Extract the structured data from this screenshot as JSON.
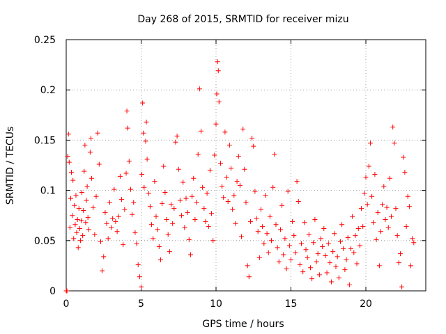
{
  "chart_data": {
    "type": "scatter",
    "title": "Day 268 of 2015, SRMTID for receiver mizu",
    "xlabel": "GPS time / hours",
    "ylabel": "SRMTID / TECUs",
    "xlim": [
      0,
      24
    ],
    "ylim": [
      0,
      0.25
    ],
    "xticks": [
      0,
      5,
      10,
      15,
      20
    ],
    "xtick_labels": [
      "0",
      "5",
      "10",
      "15",
      "20"
    ],
    "yticks": [
      0,
      0.05,
      0.1,
      0.15,
      0.2,
      0.25
    ],
    "ytick_labels": [
      "0",
      "0.05",
      "0.1",
      "0.15",
      "0.2",
      "0.25"
    ],
    "grid": true,
    "marker": "plus",
    "color": "#ff0000",
    "series": [
      {
        "name": "SRMTID",
        "points": [
          [
            0.0,
            0.0
          ],
          [
            0.05,
            0.0
          ],
          [
            0.1,
            0.134
          ],
          [
            0.15,
            0.156
          ],
          [
            0.2,
            0.128
          ],
          [
            0.25,
            0.063
          ],
          [
            0.3,
            0.092
          ],
          [
            0.35,
            0.118
          ],
          [
            0.4,
            0.075
          ],
          [
            0.45,
            0.11
          ],
          [
            0.5,
            0.052
          ],
          [
            0.55,
            0.085
          ],
          [
            0.6,
            0.066
          ],
          [
            0.65,
            0.095
          ],
          [
            0.7,
            0.058
          ],
          [
            0.75,
            0.071
          ],
          [
            0.8,
            0.043
          ],
          [
            0.85,
            0.082
          ],
          [
            0.9,
            0.062
          ],
          [
            0.95,
            0.05
          ],
          [
            1.0,
            0.07
          ],
          [
            1.05,
            0.098
          ],
          [
            1.1,
            0.055
          ],
          [
            1.15,
            0.08
          ],
          [
            1.2,
            0.119
          ],
          [
            1.25,
            0.145
          ],
          [
            1.3,
            0.068
          ],
          [
            1.35,
            0.09
          ],
          [
            1.4,
            0.104
          ],
          [
            1.45,
            0.073
          ],
          [
            1.5,
            0.061
          ],
          [
            1.6,
            0.138
          ],
          [
            1.65,
            0.152
          ],
          [
            1.7,
            0.112
          ],
          [
            1.8,
            0.083
          ],
          [
            1.9,
            0.056
          ],
          [
            2.0,
            0.094
          ],
          [
            2.1,
            0.157
          ],
          [
            2.2,
            0.126
          ],
          [
            2.3,
            0.049
          ],
          [
            2.4,
            0.02
          ],
          [
            2.5,
            0.034
          ],
          [
            2.6,
            0.078
          ],
          [
            2.7,
            0.067
          ],
          [
            2.8,
            0.052
          ],
          [
            2.9,
            0.088
          ],
          [
            3.0,
            0.063
          ],
          [
            3.1,
            0.072
          ],
          [
            3.2,
            0.101
          ],
          [
            3.3,
            0.069
          ],
          [
            3.4,
            0.059
          ],
          [
            3.5,
            0.074
          ],
          [
            3.6,
            0.114
          ],
          [
            3.7,
            0.091
          ],
          [
            3.8,
            0.046
          ],
          [
            3.9,
            0.081
          ],
          [
            4.0,
            0.117
          ],
          [
            4.05,
            0.179
          ],
          [
            4.1,
            0.162
          ],
          [
            4.2,
            0.129
          ],
          [
            4.3,
            0.101
          ],
          [
            4.4,
            0.076
          ],
          [
            4.5,
            0.088
          ],
          [
            4.6,
            0.058
          ],
          [
            4.7,
            0.047
          ],
          [
            4.8,
            0.026
          ],
          [
            4.9,
            0.014
          ],
          [
            5.0,
            0.004
          ],
          [
            5.05,
            0.116
          ],
          [
            5.1,
            0.187
          ],
          [
            5.15,
            0.157
          ],
          [
            5.2,
            0.103
          ],
          [
            5.3,
            0.149
          ],
          [
            5.35,
            0.168
          ],
          [
            5.4,
            0.131
          ],
          [
            5.5,
            0.097
          ],
          [
            5.6,
            0.084
          ],
          [
            5.7,
            0.066
          ],
          [
            5.8,
            0.052
          ],
          [
            5.9,
            0.109
          ],
          [
            6.0,
            0.074
          ],
          [
            6.1,
            0.061
          ],
          [
            6.2,
            0.044
          ],
          [
            6.3,
            0.031
          ],
          [
            6.4,
            0.087
          ],
          [
            6.5,
            0.124
          ],
          [
            6.6,
            0.098
          ],
          [
            6.7,
            0.071
          ],
          [
            6.8,
            0.056
          ],
          [
            6.9,
            0.039
          ],
          [
            7.0,
            0.086
          ],
          [
            7.1,
            0.067
          ],
          [
            7.2,
            0.082
          ],
          [
            7.3,
            0.148
          ],
          [
            7.4,
            0.154
          ],
          [
            7.5,
            0.121
          ],
          [
            7.6,
            0.09
          ],
          [
            7.7,
            0.075
          ],
          [
            7.8,
            0.108
          ],
          [
            7.9,
            0.063
          ],
          [
            8.0,
            0.092
          ],
          [
            8.1,
            0.078
          ],
          [
            8.2,
            0.051
          ],
          [
            8.3,
            0.036
          ],
          [
            8.4,
            0.094
          ],
          [
            8.5,
            0.112
          ],
          [
            8.6,
            0.071
          ],
          [
            8.7,
            0.088
          ],
          [
            8.8,
            0.136
          ],
          [
            8.9,
            0.201
          ],
          [
            9.0,
            0.159
          ],
          [
            9.1,
            0.103
          ],
          [
            9.2,
            0.082
          ],
          [
            9.3,
            0.069
          ],
          [
            9.4,
            0.097
          ],
          [
            9.5,
            0.064
          ],
          [
            9.6,
            0.12
          ],
          [
            9.7,
            0.077
          ],
          [
            9.8,
            0.05
          ],
          [
            9.9,
            0.135
          ],
          [
            10.0,
            0.166
          ],
          [
            10.05,
            0.196
          ],
          [
            10.1,
            0.228
          ],
          [
            10.15,
            0.219
          ],
          [
            10.2,
            0.188
          ],
          [
            10.3,
            0.127
          ],
          [
            10.4,
            0.104
          ],
          [
            10.5,
            0.093
          ],
          [
            10.6,
            0.158
          ],
          [
            10.7,
            0.113
          ],
          [
            10.8,
            0.089
          ],
          [
            10.9,
            0.145
          ],
          [
            11.0,
            0.122
          ],
          [
            11.1,
            0.081
          ],
          [
            11.2,
            0.095
          ],
          [
            11.3,
            0.067
          ],
          [
            11.4,
            0.109
          ],
          [
            11.5,
            0.134
          ],
          [
            11.6,
            0.105
          ],
          [
            11.7,
            0.054
          ],
          [
            11.8,
            0.161
          ],
          [
            11.9,
            0.121
          ],
          [
            12.0,
            0.088
          ],
          [
            12.1,
            0.025
          ],
          [
            12.2,
            0.014
          ],
          [
            12.3,
            0.069
          ],
          [
            12.4,
            0.152
          ],
          [
            12.5,
            0.144
          ],
          [
            12.6,
            0.099
          ],
          [
            12.7,
            0.072
          ],
          [
            12.8,
            0.059
          ],
          [
            12.9,
            0.033
          ],
          [
            13.0,
            0.081
          ],
          [
            13.1,
            0.064
          ],
          [
            13.2,
            0.047
          ],
          [
            13.3,
            0.095
          ],
          [
            13.4,
            0.057
          ],
          [
            13.5,
            0.038
          ],
          [
            13.6,
            0.074
          ],
          [
            13.7,
            0.05
          ],
          [
            13.8,
            0.103
          ],
          [
            13.9,
            0.136
          ],
          [
            14.0,
            0.066
          ],
          [
            14.1,
            0.043
          ],
          [
            14.2,
            0.029
          ],
          [
            14.3,
            0.061
          ],
          [
            14.4,
            0.085
          ],
          [
            14.5,
            0.036
          ],
          [
            14.6,
            0.052
          ],
          [
            14.7,
            0.022
          ],
          [
            14.8,
            0.099
          ],
          [
            14.9,
            0.045
          ],
          [
            15.0,
            0.031
          ],
          [
            15.1,
            0.069
          ],
          [
            15.2,
            0.055
          ],
          [
            15.3,
            0.038
          ],
          [
            15.4,
            0.109
          ],
          [
            15.5,
            0.089
          ],
          [
            15.6,
            0.026
          ],
          [
            15.7,
            0.047
          ],
          [
            15.8,
            0.019
          ],
          [
            15.9,
            0.068
          ],
          [
            16.0,
            0.041
          ],
          [
            16.1,
            0.033
          ],
          [
            16.2,
            0.056
          ],
          [
            16.3,
            0.023
          ],
          [
            16.4,
            0.012
          ],
          [
            16.5,
            0.048
          ],
          [
            16.6,
            0.071
          ],
          [
            16.7,
            0.029
          ],
          [
            16.8,
            0.037
          ],
          [
            16.9,
            0.016
          ],
          [
            17.0,
            0.052
          ],
          [
            17.1,
            0.044
          ],
          [
            17.2,
            0.062
          ],
          [
            17.3,
            0.035
          ],
          [
            17.4,
            0.018
          ],
          [
            17.5,
            0.047
          ],
          [
            17.6,
            0.028
          ],
          [
            17.7,
            0.009
          ],
          [
            17.8,
            0.039
          ],
          [
            17.9,
            0.057
          ],
          [
            18.0,
            0.024
          ],
          [
            18.1,
            0.034
          ],
          [
            18.2,
            0.013
          ],
          [
            18.3,
            0.049
          ],
          [
            18.4,
            0.066
          ],
          [
            18.5,
            0.042
          ],
          [
            18.6,
            0.021
          ],
          [
            18.7,
            0.031
          ],
          [
            18.8,
            0.053
          ],
          [
            18.9,
            0.006
          ],
          [
            19.0,
            0.042
          ],
          [
            19.1,
            0.074
          ],
          [
            19.2,
            0.038
          ],
          [
            19.3,
            0.055
          ],
          [
            19.4,
            0.027
          ],
          [
            19.5,
            0.062
          ],
          [
            19.6,
            0.045
          ],
          [
            19.7,
            0.082
          ],
          [
            19.8,
            0.064
          ],
          [
            19.9,
            0.097
          ],
          [
            20.0,
            0.113
          ],
          [
            20.1,
            0.086
          ],
          [
            20.2,
            0.124
          ],
          [
            20.3,
            0.147
          ],
          [
            20.4,
            0.094
          ],
          [
            20.5,
            0.068
          ],
          [
            20.6,
            0.116
          ],
          [
            20.7,
            0.051
          ],
          [
            20.8,
            0.078
          ],
          [
            20.9,
            0.025
          ],
          [
            21.0,
            0.059
          ],
          [
            21.1,
            0.086
          ],
          [
            21.2,
            0.104
          ],
          [
            21.3,
            0.071
          ],
          [
            21.4,
            0.083
          ],
          [
            21.5,
            0.063
          ],
          [
            21.6,
            0.112
          ],
          [
            21.7,
            0.074
          ],
          [
            21.8,
            0.163
          ],
          [
            21.9,
            0.147
          ],
          [
            22.0,
            0.082
          ],
          [
            22.1,
            0.055
          ],
          [
            22.2,
            0.028
          ],
          [
            22.3,
            0.037
          ],
          [
            22.4,
            0.004
          ],
          [
            22.5,
            0.133
          ],
          [
            22.6,
            0.118
          ],
          [
            22.7,
            0.064
          ],
          [
            22.8,
            0.094
          ],
          [
            22.9,
            0.084
          ],
          [
            23.0,
            0.025
          ],
          [
            23.1,
            0.052
          ],
          [
            23.2,
            0.048
          ]
        ]
      }
    ]
  }
}
